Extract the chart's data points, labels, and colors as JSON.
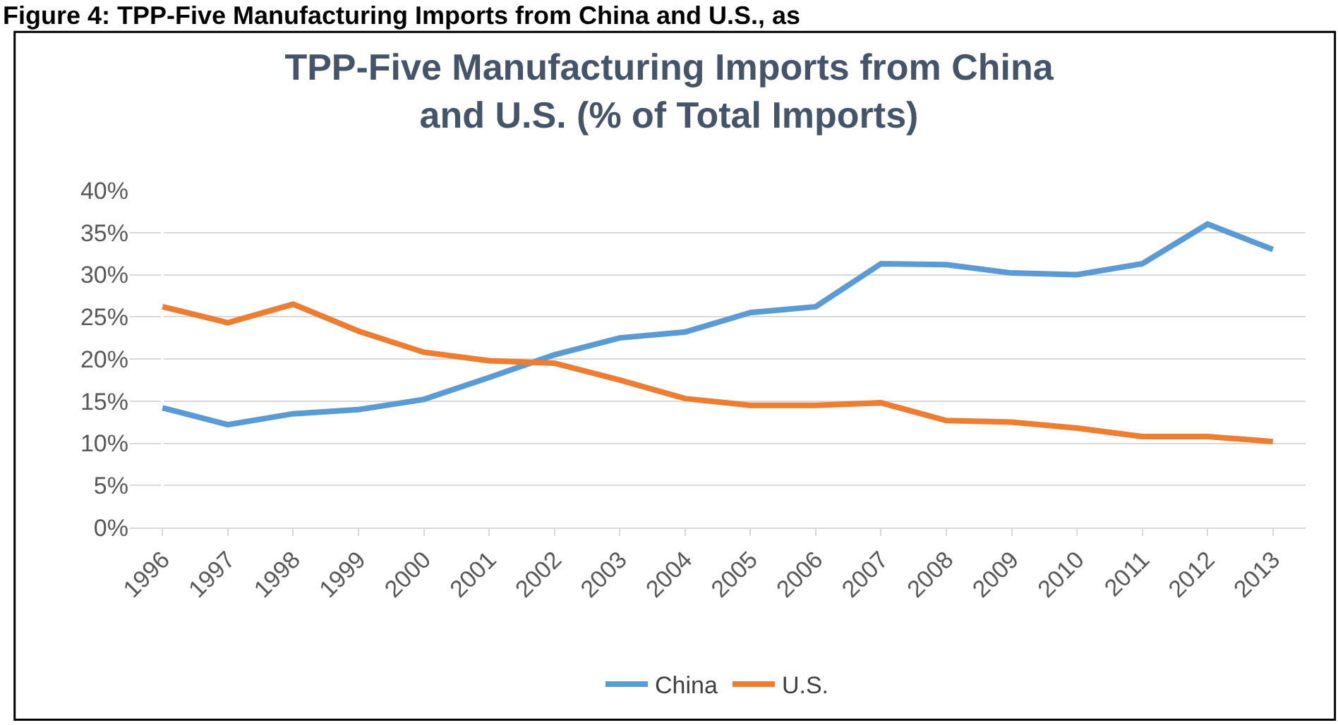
{
  "chart_data": {
    "type": "line",
    "title": "TPP-Five Manufacturing Imports from China and U.S. (% of Total Imports)",
    "annotations": [
      "Figure 4: TPP-Five Manufacturing Imports from China and U.S., as"
    ],
    "categories": [
      "1996",
      "1997",
      "1998",
      "1999",
      "2000",
      "2001",
      "2002",
      "2003",
      "2004",
      "2005",
      "2006",
      "2007",
      "2008",
      "2009",
      "2010",
      "2011",
      "2012",
      "2013"
    ],
    "series": [
      {
        "name": "China",
        "color": "#5b9bd5",
        "values": [
          14.2,
          12.2,
          13.5,
          14,
          15.2,
          17.8,
          20.5,
          22.5,
          23.2,
          25.5,
          26.2,
          31.3,
          31.2,
          30.2,
          30,
          31.3,
          36,
          33
        ]
      },
      {
        "name": "U.S.",
        "color": "#ed7d31",
        "values": [
          26.2,
          24.3,
          26.5,
          23.3,
          20.8,
          19.8,
          19.5,
          17.5,
          15.3,
          14.5,
          14.5,
          14.8,
          12.7,
          12.5,
          11.8,
          10.8,
          10.8,
          10.2
        ]
      }
    ],
    "ylim": [
      0,
      40
    ],
    "yticks": [
      {
        "value": 0,
        "label": "0%"
      },
      {
        "value": 5,
        "label": "5%"
      },
      {
        "value": 10,
        "label": "10%"
      },
      {
        "value": 15,
        "label": "15%"
      },
      {
        "value": 20,
        "label": "20%"
      },
      {
        "value": 25,
        "label": "25%"
      },
      {
        "value": 30,
        "label": "30%"
      },
      {
        "value": 35,
        "label": "35%"
      },
      {
        "value": 40,
        "label": "40%"
      }
    ],
    "grid": "y",
    "legend": "bottom",
    "marker": "none",
    "line_style": "solid"
  }
}
